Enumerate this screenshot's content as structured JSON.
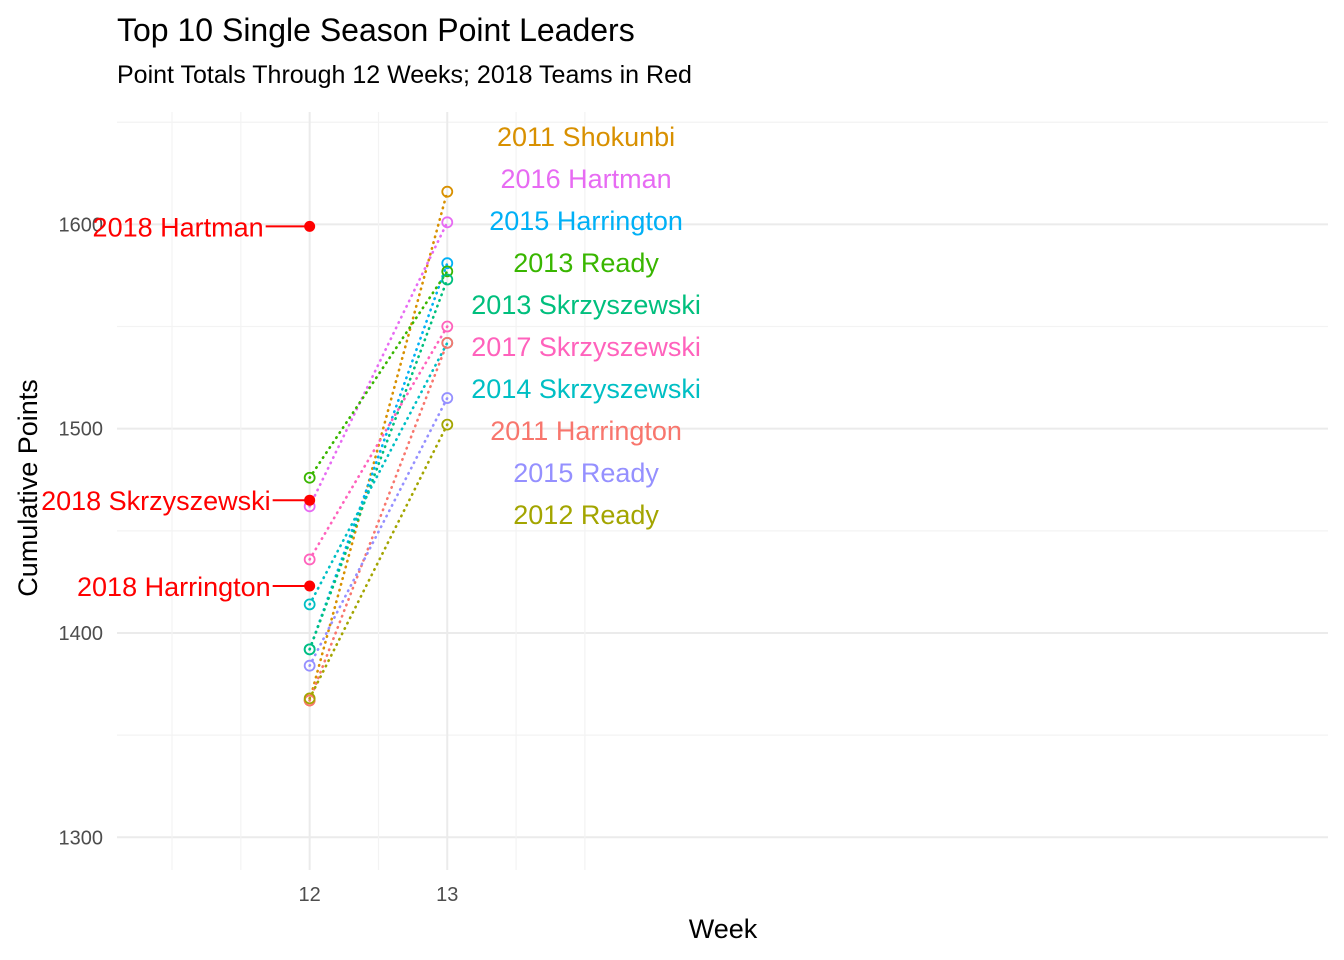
{
  "chart_data": {
    "type": "line",
    "title": "Top 10 Single Season Point Leaders",
    "subtitle": "Point Totals Through 12 Weeks; 2018 Teams in Red",
    "xlabel": "Week",
    "ylabel": "Cumulative Points",
    "x_ticks": [
      12,
      13
    ],
    "y_ticks": [
      1300,
      1400,
      1500,
      1600
    ],
    "xlim": [
      10.6,
      19.4
    ],
    "ylim": [
      1284,
      1655
    ],
    "grid": true,
    "label_x": 13.5,
    "series": [
      {
        "name": "2011 Shokunbi",
        "color": "#D89000",
        "x": [
          12,
          13
        ],
        "y": [
          1367,
          1616
        ]
      },
      {
        "name": "2016 Hartman",
        "color": "#E76BF3",
        "x": [
          12,
          13
        ],
        "y": [
          1462,
          1601
        ]
      },
      {
        "name": "2015 Harrington",
        "color": "#00B0F6",
        "x": [
          12,
          13
        ],
        "y": [
          1392,
          1581
        ]
      },
      {
        "name": "2013 Ready",
        "color": "#39B600",
        "x": [
          12,
          13
        ],
        "y": [
          1476,
          1577
        ]
      },
      {
        "name": "2013 Skrzyszewski",
        "color": "#00BF7D",
        "x": [
          12,
          13
        ],
        "y": [
          1392,
          1573
        ]
      },
      {
        "name": "2017 Skrzyszewski",
        "color": "#FF62BC",
        "x": [
          12,
          13
        ],
        "y": [
          1436,
          1550
        ]
      },
      {
        "name": "2014 Skrzyszewski",
        "color": "#00BFC4",
        "x": [
          12,
          13
        ],
        "y": [
          1414,
          1542
        ]
      },
      {
        "name": "2011 Harrington",
        "color": "#F8766D",
        "x": [
          12,
          13
        ],
        "y": [
          1367,
          1542
        ]
      },
      {
        "name": "2015 Ready",
        "color": "#9590FF",
        "x": [
          12,
          13
        ],
        "y": [
          1384,
          1515
        ]
      },
      {
        "name": "2012 Ready",
        "color": "#A3A500",
        "x": [
          12,
          13
        ],
        "y": [
          1368,
          1502
        ]
      }
    ],
    "highlight_color": "#FF0000",
    "highlight": [
      {
        "name": "2018 Hartman",
        "x": 12,
        "y": 1599
      },
      {
        "name": "2018 Skrzyszewski",
        "x": 12,
        "y": 1465
      },
      {
        "name": "2018 Harrington",
        "x": 12,
        "y": 1423
      }
    ]
  }
}
